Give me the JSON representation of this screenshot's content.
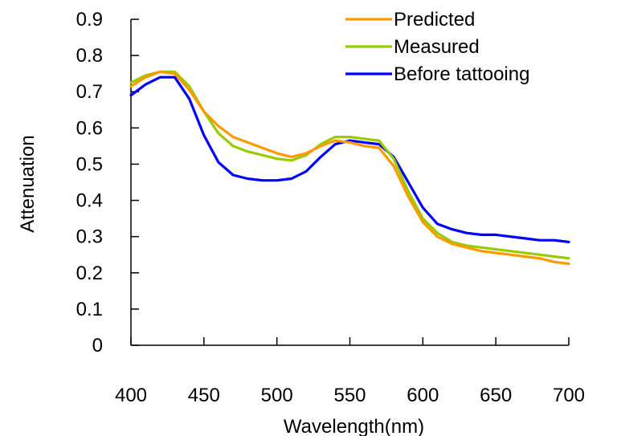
{
  "chart_data": {
    "type": "line",
    "xlabel": "Wavelength(nm)",
    "ylabel": "Attenuation",
    "xlim": [
      400,
      700
    ],
    "ylim": [
      0,
      0.9
    ],
    "x_ticks": [
      400,
      450,
      500,
      550,
      600,
      650,
      700
    ],
    "y_ticks": [
      0,
      0.1,
      0.2,
      0.3,
      0.4,
      0.5,
      0.6,
      0.7,
      0.8,
      0.9
    ],
    "x_tick_labels": [
      "400",
      "450",
      "500",
      "550",
      "600",
      "650",
      "700"
    ],
    "y_tick_labels": [
      "0",
      "0.1",
      "0.2",
      "0.3",
      "0.4",
      "0.5",
      "0.6",
      "0.7",
      "0.8",
      "0.9"
    ],
    "grid": false,
    "legend_position": "top-right",
    "x": [
      400,
      410,
      420,
      430,
      440,
      450,
      460,
      470,
      480,
      490,
      500,
      510,
      520,
      530,
      540,
      550,
      560,
      570,
      580,
      590,
      600,
      610,
      620,
      630,
      640,
      650,
      660,
      670,
      680,
      690,
      700
    ],
    "series": [
      {
        "name": "Predicted",
        "color": "#ff9900",
        "values": [
          0.715,
          0.74,
          0.755,
          0.75,
          0.705,
          0.645,
          0.605,
          0.575,
          0.56,
          0.545,
          0.53,
          0.52,
          0.53,
          0.55,
          0.565,
          0.56,
          0.55,
          0.545,
          0.495,
          0.41,
          0.34,
          0.3,
          0.28,
          0.27,
          0.26,
          0.255,
          0.25,
          0.245,
          0.24,
          0.23,
          0.225
        ]
      },
      {
        "name": "Measured",
        "color": "#99cc00",
        "values": [
          0.725,
          0.745,
          0.755,
          0.755,
          0.715,
          0.645,
          0.585,
          0.55,
          0.535,
          0.525,
          0.515,
          0.51,
          0.525,
          0.555,
          0.575,
          0.575,
          0.57,
          0.565,
          0.515,
          0.425,
          0.35,
          0.31,
          0.285,
          0.275,
          0.27,
          0.265,
          0.26,
          0.255,
          0.25,
          0.245,
          0.24
        ]
      },
      {
        "name": "Before tattooing",
        "color": "#0000ff",
        "values": [
          0.69,
          0.72,
          0.74,
          0.74,
          0.68,
          0.58,
          0.505,
          0.47,
          0.46,
          0.455,
          0.455,
          0.46,
          0.48,
          0.52,
          0.555,
          0.565,
          0.56,
          0.555,
          0.52,
          0.45,
          0.38,
          0.335,
          0.32,
          0.31,
          0.305,
          0.305,
          0.3,
          0.295,
          0.29,
          0.29,
          0.285
        ]
      }
    ]
  }
}
